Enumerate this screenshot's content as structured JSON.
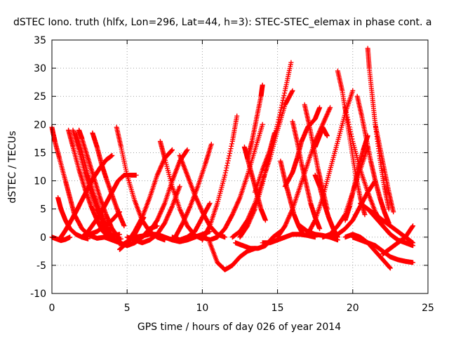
{
  "chart_data": {
    "type": "scatter",
    "title": "dSTEC Iono. truth (hlfx, Lon=296, Lat=44, h=3): STEC-STEC_elemax in phase cont. a",
    "xlabel": "GPS time / hours of day 026 of year 2014",
    "ylabel": "dSTEC  / TECUs",
    "xlim": [
      0,
      25
    ],
    "ylim": [
      -10,
      35
    ],
    "xticks": [
      0,
      5,
      10,
      15,
      20,
      25
    ],
    "yticks": [
      -10,
      -5,
      0,
      5,
      10,
      15,
      20,
      25,
      30,
      35
    ],
    "grid": true,
    "legend": "none",
    "marker": "plus",
    "series_color": "#ff0000",
    "series": [
      {
        "x": [
          0.0,
          0.2,
          0.5,
          0.9,
          1.2,
          1.5,
          2.0,
          2.5,
          3.0,
          3.5,
          4.0,
          4.5
        ],
        "y": [
          19.5,
          17.0,
          14.0,
          10.0,
          7.0,
          4.0,
          1.5,
          0.3,
          -0.2,
          0.0,
          0.3,
          0.5
        ]
      },
      {
        "x": [
          0.0,
          0.3,
          0.6,
          0.9,
          1.2
        ],
        "y": [
          0.0,
          -0.3,
          -0.6,
          -0.4,
          0.0
        ]
      },
      {
        "x": [
          0.4,
          0.6,
          0.9,
          1.2,
          1.6,
          2.0,
          2.4
        ],
        "y": [
          7.0,
          5.0,
          3.0,
          1.5,
          0.5,
          0.0,
          -0.3
        ]
      },
      {
        "x": [
          0.6,
          0.9,
          1.2,
          1.6,
          2.0,
          2.4,
          2.8,
          3.2,
          3.6,
          4.0
        ],
        "y": [
          0.0,
          1.2,
          2.6,
          4.5,
          6.6,
          8.7,
          10.7,
          12.3,
          13.7,
          14.5
        ]
      },
      {
        "x": [
          1.1,
          1.4,
          1.8,
          2.2,
          2.6,
          3.0,
          3.4,
          3.8,
          4.2,
          4.6
        ],
        "y": [
          19.0,
          16.0,
          12.0,
          8.5,
          5.5,
          3.0,
          1.0,
          0.0,
          -0.5,
          -0.3
        ]
      },
      {
        "x": [
          1.4,
          1.8,
          2.2,
          2.6,
          3.0,
          3.4,
          3.8,
          4.2
        ],
        "y": [
          19.0,
          15.5,
          11.5,
          8.0,
          5.0,
          2.5,
          0.5,
          -0.5
        ]
      },
      {
        "x": [
          1.6,
          2.0,
          2.4,
          2.8,
          3.2,
          3.6,
          4.0
        ],
        "y": [
          18.5,
          15.0,
          11.0,
          7.5,
          4.5,
          2.0,
          0.0
        ]
      },
      {
        "x": [
          1.8,
          2.0,
          2.4,
          2.8,
          3.2,
          3.6,
          4.0,
          4.4
        ],
        "y": [
          19.0,
          17.5,
          14.0,
          10.5,
          7.0,
          4.0,
          1.5,
          0.0
        ]
      },
      {
        "x": [
          2.7,
          3.0,
          3.3,
          3.6,
          4.0,
          4.4,
          4.8
        ],
        "y": [
          18.5,
          16.0,
          13.0,
          10.5,
          7.5,
          4.5,
          2.0
        ]
      },
      {
        "x": [
          2.0,
          2.4,
          2.8,
          3.2,
          3.6,
          4.0,
          4.4,
          4.8,
          5.2,
          5.6
        ],
        "y": [
          0.0,
          1.0,
          2.5,
          4.0,
          6.0,
          8.0,
          10.0,
          11.0,
          11.0,
          11.0
        ]
      },
      {
        "x": [
          2.0,
          2.5,
          3.0,
          3.5,
          4.0,
          4.5
        ],
        "y": [
          0.0,
          0.5,
          1.0,
          2.0,
          3.0,
          4.5
        ]
      },
      {
        "x": [
          4.3,
          4.6,
          5.0,
          5.5,
          6.0,
          6.5,
          7.0,
          7.5
        ],
        "y": [
          19.5,
          16.0,
          11.0,
          6.5,
          3.0,
          1.0,
          0.0,
          -0.5
        ]
      },
      {
        "x": [
          4.5,
          5.0,
          5.5,
          6.0,
          6.5,
          7.0,
          7.5,
          8.0
        ],
        "y": [
          -2.2,
          -1.0,
          1.0,
          3.5,
          7.0,
          11.0,
          14.0,
          15.5
        ]
      },
      {
        "x": [
          4.6,
          4.9,
          5.2,
          5.5,
          5.8,
          6.1
        ],
        "y": [
          -1.5,
          -1.0,
          -0.5,
          0.5,
          2.0,
          3.5
        ]
      },
      {
        "x": [
          3.5,
          4.0,
          4.5,
          5.0,
          5.5,
          6.0,
          6.5,
          7.0
        ],
        "y": [
          0.0,
          -0.5,
          -1.0,
          -1.5,
          -1.0,
          0.0,
          1.5,
          2.0
        ]
      },
      {
        "x": [
          5.0,
          5.5,
          6.0,
          6.5,
          7.0,
          7.5,
          8.0,
          8.5
        ],
        "y": [
          0.0,
          -0.5,
          -1.0,
          -0.5,
          0.5,
          2.5,
          5.5,
          9.0
        ]
      },
      {
        "x": [
          5.5,
          6.0,
          6.5,
          7.0,
          7.5,
          8.0,
          8.5,
          9.0,
          9.5,
          10.0,
          10.5
        ],
        "y": [
          0.0,
          0.2,
          0.5,
          0.5,
          0.0,
          -0.5,
          -0.8,
          -0.5,
          0.0,
          0.5,
          1.0
        ]
      },
      {
        "x": [
          7.2,
          7.5,
          8.0,
          8.5,
          9.0,
          9.5,
          10.0
        ],
        "y": [
          17.0,
          14.0,
          9.0,
          5.0,
          2.0,
          0.3,
          -0.3
        ]
      },
      {
        "x": [
          6.0,
          6.5,
          7.0,
          7.5,
          8.0,
          8.5,
          9.0
        ],
        "y": [
          0.0,
          1.0,
          3.0,
          6.0,
          10.0,
          13.5,
          15.5
        ]
      },
      {
        "x": [
          8.0,
          8.5,
          9.0,
          9.5,
          10.0,
          10.5
        ],
        "y": [
          0.0,
          -0.5,
          0.0,
          1.0,
          3.5,
          6.0
        ]
      },
      {
        "x": [
          8.5,
          9.0,
          9.5,
          10.0,
          10.5,
          11.0,
          11.5
        ],
        "y": [
          14.5,
          11.0,
          7.5,
          4.5,
          2.0,
          0.5,
          0.0
        ]
      },
      {
        "x": [
          8.2,
          8.7,
          9.2,
          9.7,
          10.2,
          10.6
        ],
        "y": [
          0.0,
          2.5,
          5.5,
          9.0,
          13.0,
          16.5
        ]
      },
      {
        "x": [
          10.5,
          11.0,
          11.5,
          12.0,
          12.5,
          13.0,
          13.5
        ],
        "y": [
          -1.0,
          -4.5,
          -5.8,
          -5.0,
          -3.5,
          -2.5,
          -2.0
        ]
      },
      {
        "x": [
          10.0,
          10.5,
          11.0,
          11.5,
          12.0,
          12.5,
          13.0,
          13.5,
          14.0
        ],
        "y": [
          0.0,
          -0.5,
          0.0,
          1.5,
          4.0,
          7.0,
          11.0,
          15.5,
          20.0
        ]
      },
      {
        "x": [
          10.0,
          10.5,
          11.0,
          11.5,
          12.0,
          12.3
        ],
        "y": [
          -0.5,
          2.0,
          6.0,
          11.0,
          17.0,
          21.5
        ]
      },
      {
        "x": [
          12.2,
          12.7,
          13.2,
          13.7,
          14.2,
          14.7,
          15.2
        ],
        "y": [
          -1.0,
          -1.5,
          -2.0,
          -2.0,
          -1.5,
          0.0,
          1.0
        ]
      },
      {
        "x": [
          12.8,
          13.0,
          13.3,
          13.6,
          13.9,
          14.2
        ],
        "y": [
          16.0,
          14.0,
          11.0,
          8.0,
          5.0,
          3.0
        ]
      },
      {
        "x": [
          12.0,
          12.5,
          13.0,
          13.5,
          14.0,
          14.5,
          15.0,
          15.5,
          16.0
        ],
        "y": [
          0.0,
          1.0,
          3.0,
          6.0,
          10.0,
          14.0,
          19.0,
          23.5,
          26.0
        ]
      },
      {
        "x": [
          12.5,
          13.0,
          13.5,
          14.0,
          14.5,
          15.0,
          15.5,
          15.9
        ],
        "y": [
          0.0,
          2.0,
          5.0,
          9.5,
          15.0,
          20.0,
          26.0,
          31.0
        ]
      },
      {
        "x": [
          13.0,
          13.3,
          13.6,
          13.9,
          14.0
        ],
        "y": [
          14.0,
          17.0,
          21.0,
          25.0,
          27.0
        ]
      },
      {
        "x": [
          13.5,
          14.0,
          14.5,
          14.8
        ],
        "y": [
          8.0,
          12.0,
          15.5,
          18.5
        ]
      },
      {
        "x": [
          14.0,
          14.5,
          15.0,
          15.5,
          16.0,
          16.5,
          17.0,
          17.5
        ],
        "y": [
          -1.0,
          -1.0,
          -0.5,
          0.0,
          0.5,
          0.5,
          0.3,
          0.0
        ]
      },
      {
        "x": [
          15.2,
          15.5,
          15.8,
          16.1,
          16.4,
          16.7
        ],
        "y": [
          13.5,
          10.0,
          7.0,
          4.0,
          2.0,
          0.5
        ]
      },
      {
        "x": [
          16.0,
          16.3,
          16.6,
          16.9,
          17.2,
          17.5,
          17.8
        ],
        "y": [
          20.5,
          17.0,
          13.0,
          9.5,
          6.0,
          3.5,
          1.5
        ]
      },
      {
        "x": [
          16.8,
          17.1,
          17.4,
          17.7,
          18.0,
          18.3
        ],
        "y": [
          23.5,
          20.0,
          16.0,
          12.0,
          8.5,
          5.0
        ]
      },
      {
        "x": [
          15.0,
          15.5,
          16.0,
          16.5,
          17.0,
          17.5,
          18.0,
          18.5
        ],
        "y": [
          0.0,
          2.0,
          5.0,
          9.0,
          13.0,
          17.0,
          20.0,
          23.0
        ]
      },
      {
        "x": [
          15.5,
          16.0,
          16.3,
          16.6,
          17.0,
          17.5,
          17.8
        ],
        "y": [
          9.0,
          11.5,
          14.0,
          17.0,
          19.5,
          21.0,
          23.0
        ]
      },
      {
        "x": [
          16.5,
          17.0,
          17.5,
          18.0,
          18.5,
          19.0
        ],
        "y": [
          2.0,
          1.0,
          0.5,
          0.3,
          0.0,
          -0.5
        ]
      },
      {
        "x": [
          17.0,
          17.5,
          18.0,
          18.5,
          19.0,
          19.5,
          20.0
        ],
        "y": [
          0.5,
          3.0,
          7.0,
          12.0,
          17.0,
          22.0,
          26.0
        ]
      },
      {
        "x": [
          17.5,
          17.8,
          18.0,
          18.3
        ],
        "y": [
          16.0,
          18.0,
          19.5,
          18.0
        ]
      },
      {
        "x": [
          17.5,
          17.8,
          18.1,
          18.4,
          18.7,
          19.0
        ],
        "y": [
          11.0,
          9.0,
          6.0,
          3.5,
          1.5,
          0.0
        ]
      },
      {
        "x": [
          19.0,
          19.3,
          19.6,
          19.9,
          20.2,
          20.5,
          20.8
        ],
        "y": [
          29.5,
          26.0,
          21.0,
          16.0,
          11.0,
          7.0,
          4.0
        ]
      },
      {
        "x": [
          18.5,
          19.0,
          19.5,
          20.0,
          20.5,
          21.0,
          21.5
        ],
        "y": [
          0.0,
          0.5,
          1.5,
          3.0,
          5.5,
          8.0,
          10.0
        ]
      },
      {
        "x": [
          19.5,
          20.0,
          20.5,
          21.0,
          21.5,
          22.0,
          22.5
        ],
        "y": [
          23.0,
          17.0,
          12.0,
          8.0,
          4.5,
          2.0,
          0.5
        ]
      },
      {
        "x": [
          20.3,
          20.6,
          20.9,
          21.2,
          21.5,
          21.8,
          22.1,
          22.4
        ],
        "y": [
          25.0,
          21.5,
          17.5,
          13.5,
          10.0,
          7.0,
          4.5,
          2.5
        ]
      },
      {
        "x": [
          21.0,
          21.1,
          21.3,
          21.5,
          21.8,
          22.1,
          22.4
        ],
        "y": [
          33.5,
          30.0,
          25.0,
          20.0,
          14.0,
          9.0,
          5.0
        ]
      },
      {
        "x": [
          21.5,
          21.8,
          22.1,
          22.4,
          22.7
        ],
        "y": [
          20.0,
          16.0,
          12.0,
          8.0,
          4.5
        ]
      },
      {
        "x": [
          20.0,
          20.5,
          21.0,
          21.5,
          22.0,
          22.5,
          23.0,
          23.5,
          24.0
        ],
        "y": [
          0.0,
          -0.5,
          -1.0,
          -1.5,
          -2.5,
          -3.5,
          -4.0,
          -4.3,
          -4.5
        ]
      },
      {
        "x": [
          19.5,
          20.0,
          20.5,
          21.0,
          21.5,
          22.0,
          22.5
        ],
        "y": [
          0.0,
          0.5,
          0.0,
          -1.0,
          -2.5,
          -4.0,
          -5.5
        ]
      },
      {
        "x": [
          21.0,
          21.5,
          22.0,
          22.5,
          23.0,
          23.5,
          24.0
        ],
        "y": [
          5.0,
          4.0,
          3.0,
          2.0,
          1.0,
          0.0,
          -1.0
        ]
      },
      {
        "x": [
          22.0,
          22.5,
          23.0,
          23.5,
          24.0
        ],
        "y": [
          -3.0,
          -2.0,
          -1.0,
          0.0,
          2.0
        ]
      },
      {
        "x": [
          18.0,
          18.5,
          19.0,
          19.5,
          20.0,
          20.5,
          21.0
        ],
        "y": [
          0.0,
          0.5,
          2.0,
          4.0,
          8.0,
          12.0,
          16.0
        ]
      },
      {
        "x": [
          19.5,
          19.8,
          20.1,
          20.4,
          20.7,
          21.0
        ],
        "y": [
          3.0,
          5.5,
          9.0,
          12.5,
          15.5,
          18.0
        ]
      },
      {
        "x": [
          20.5,
          21.0,
          21.5,
          22.0,
          22.5,
          23.0,
          23.5,
          24.0
        ],
        "y": [
          6.0,
          5.0,
          3.5,
          2.0,
          0.5,
          -0.5,
          -1.0,
          -1.5
        ]
      }
    ]
  }
}
